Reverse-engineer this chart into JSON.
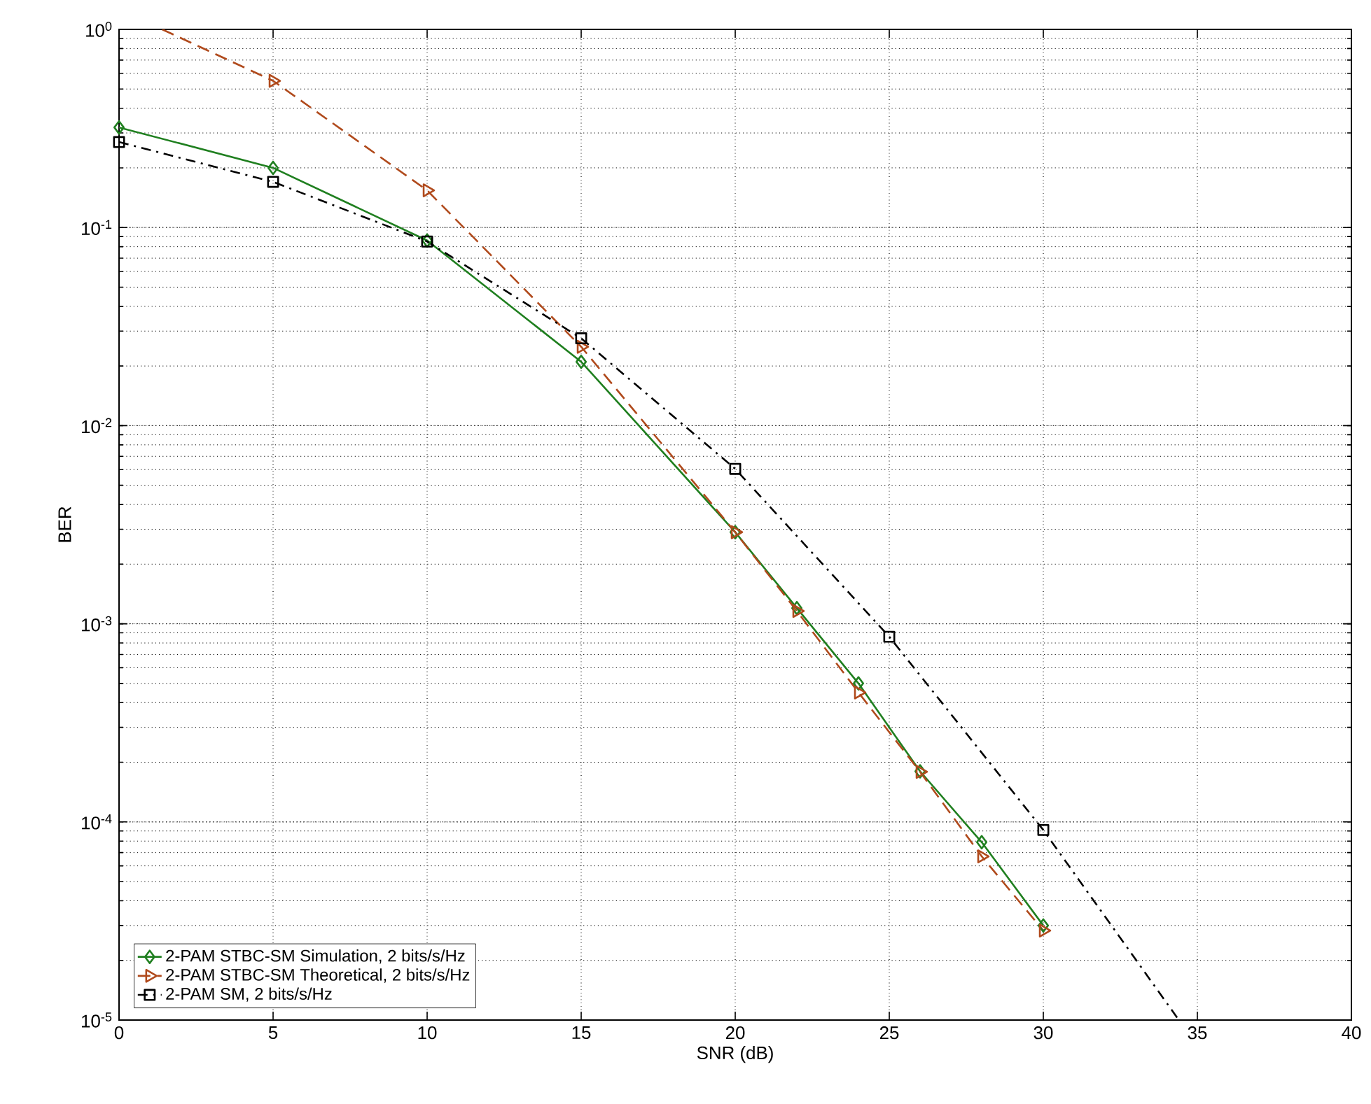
{
  "chart_data": {
    "type": "line",
    "xlabel": "SNR (dB)",
    "ylabel": "BER",
    "log": "y",
    "grid": true,
    "legend": "bottom left",
    "xlim": [
      0,
      40
    ],
    "xticks": [
      0,
      5,
      10,
      15,
      20,
      25,
      30,
      35,
      40
    ],
    "ylim": [
      1e-05,
      1
    ],
    "yticks": [
      {
        "value": 1e-05,
        "label": "10$^{-5}$"
      },
      {
        "value": 0.0001,
        "label": "10$^{-4}$"
      },
      {
        "value": 0.001,
        "label": "10$^{-3}$"
      },
      {
        "value": 0.01,
        "label": "10$^{-2}$"
      },
      {
        "value": 0.1,
        "label": "10$^{-1}$"
      },
      {
        "value": 1,
        "label": "10$^{0}$"
      }
    ],
    "series": [
      {
        "name": "2-PAM STBC-SM Simulation, 2 bits/s/Hz",
        "color": "#1f7f1f",
        "marker": "diamond",
        "line_style": "solid",
        "x": [
          0,
          5,
          10,
          15,
          20,
          22,
          24,
          26,
          28,
          30
        ],
        "values": [
          0.32,
          0.2,
          0.086,
          0.021,
          0.0029,
          0.0012,
          0.0005,
          0.00018,
          7.9e-05,
          3e-05
        ]
      },
      {
        "name": "2-PAM STBC-SM Theoretical, 2 bits/s/Hz",
        "color": "#b04a1c",
        "marker": "triangle",
        "line_style": "dashed",
        "x": [
          1.4,
          5,
          10,
          15,
          20,
          22,
          24,
          26,
          28,
          30
        ],
        "values": [
          1,
          0.55,
          0.154,
          0.025,
          0.0029,
          0.00116,
          0.00045,
          0.000179,
          6.7e-05,
          2.83e-05
        ]
      },
      {
        "name": "2-PAM SM, 2 bits/s/Hz",
        "color": "#000000",
        "marker": "square",
        "line_style": "dashdot",
        "x": [
          0,
          5,
          10,
          15,
          20,
          25,
          30,
          34.4
        ],
        "values": [
          0.27,
          0.17,
          0.085,
          0.0276,
          0.00605,
          0.00086,
          9.1e-05,
          1e-05
        ]
      }
    ]
  }
}
